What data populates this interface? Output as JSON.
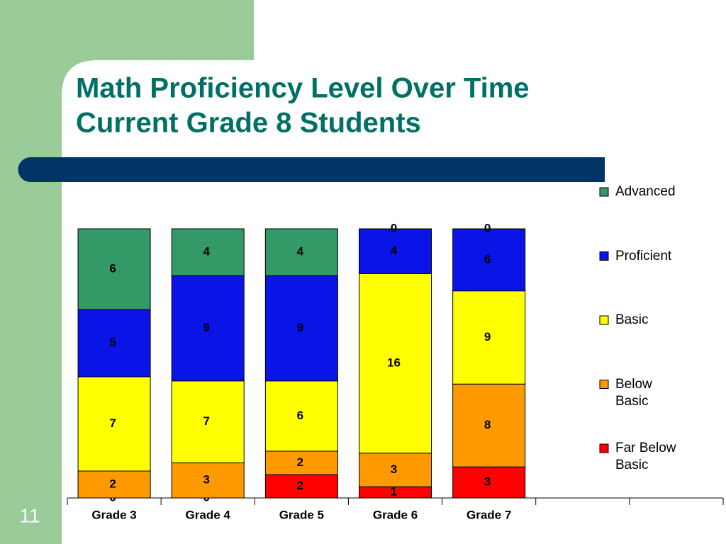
{
  "page_number": "11",
  "chart_data": {
    "type": "bar",
    "stacking": "percent",
    "title": "Math Proficiency Level Over Time",
    "subtitle": "Current Grade 8 Students",
    "categories": [
      "Grade 3",
      "Grade 4",
      "Grade 5",
      "Grade 6",
      "Grade 7",
      null,
      null
    ],
    "series": [
      {
        "name": "Advanced",
        "color": "#339966",
        "values": [
          6,
          4,
          4,
          0,
          0,
          null,
          null
        ]
      },
      {
        "name": "Proficient",
        "color": "#0a14e6",
        "values": [
          5,
          9,
          9,
          4,
          6,
          null,
          null
        ]
      },
      {
        "name": "Basic",
        "color": "#ffff00",
        "values": [
          7,
          7,
          6,
          16,
          9,
          null,
          null
        ]
      },
      {
        "name": "Below Basic",
        "color": "#ff9900",
        "values": [
          2,
          3,
          2,
          3,
          8,
          null,
          null
        ]
      },
      {
        "name": "Far Below Basic",
        "color": "#ff0000",
        "values": [
          0,
          0,
          2,
          1,
          3,
          null,
          null
        ]
      }
    ],
    "legend": "right"
  }
}
